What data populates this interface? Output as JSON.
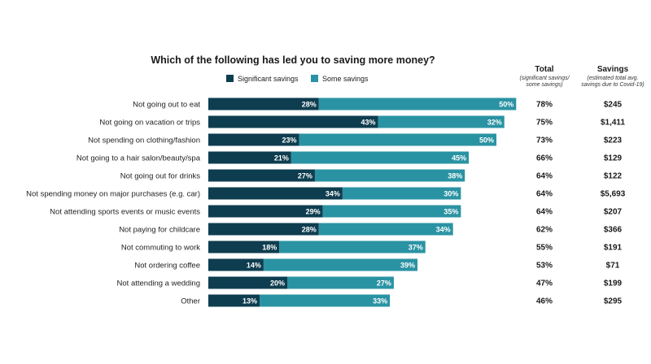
{
  "chart_data": {
    "type": "bar",
    "orientation": "horizontal",
    "stacked": true,
    "title": "Which of the following has led you to saving more money?",
    "categories": [
      "Not going out to eat",
      "Not going on vacation or trips",
      "Not spending on clothing/fashion",
      "Not going to a hair salon/beauty/spa",
      "Not going out for drinks",
      "Not spending money on major purchases (e.g. car)",
      "Not attending sports events or music events",
      "Not paying for childcare",
      "Not commuting to work",
      "Not ordering coffee",
      "Not attending a wedding",
      "Other"
    ],
    "series": [
      {
        "name": "Significant savings",
        "color": "#0e3d4f",
        "values": [
          28,
          43,
          23,
          21,
          27,
          34,
          29,
          28,
          18,
          14,
          20,
          13
        ]
      },
      {
        "name": "Some savings",
        "color": "#2a93a3",
        "values": [
          50,
          32,
          50,
          45,
          38,
          30,
          35,
          34,
          37,
          39,
          27,
          33
        ]
      }
    ],
    "bar_labels": {
      "significant": [
        "28%",
        "43%",
        "23%",
        "21%",
        "27%",
        "34%",
        "29%",
        "28%",
        "18%",
        "14%",
        "20%",
        "13%"
      ],
      "some": [
        "50%",
        "32%",
        "50%",
        "45%",
        "38%",
        "30%",
        "35%",
        "34%",
        "37%",
        "39%",
        "27%",
        "33%"
      ]
    },
    "xlim": [
      0,
      100
    ],
    "grid": false,
    "legend_position": "top",
    "columns": [
      {
        "header": "Total",
        "subheader": [
          "(significant savings/",
          "some savings)"
        ],
        "values": [
          "78%",
          "75%",
          "73%",
          "66%",
          "64%",
          "64%",
          "64%",
          "62%",
          "55%",
          "53%",
          "47%",
          "46%"
        ]
      },
      {
        "header": "Savings",
        "subheader": [
          "(estimated total avg.",
          "savings due to Covid-19)"
        ],
        "values": [
          "$245",
          "$1,411",
          "$223",
          "$129",
          "$122",
          "$5,693",
          "$207",
          "$366",
          "$191",
          "$71",
          "$199",
          "$295"
        ]
      }
    ]
  }
}
